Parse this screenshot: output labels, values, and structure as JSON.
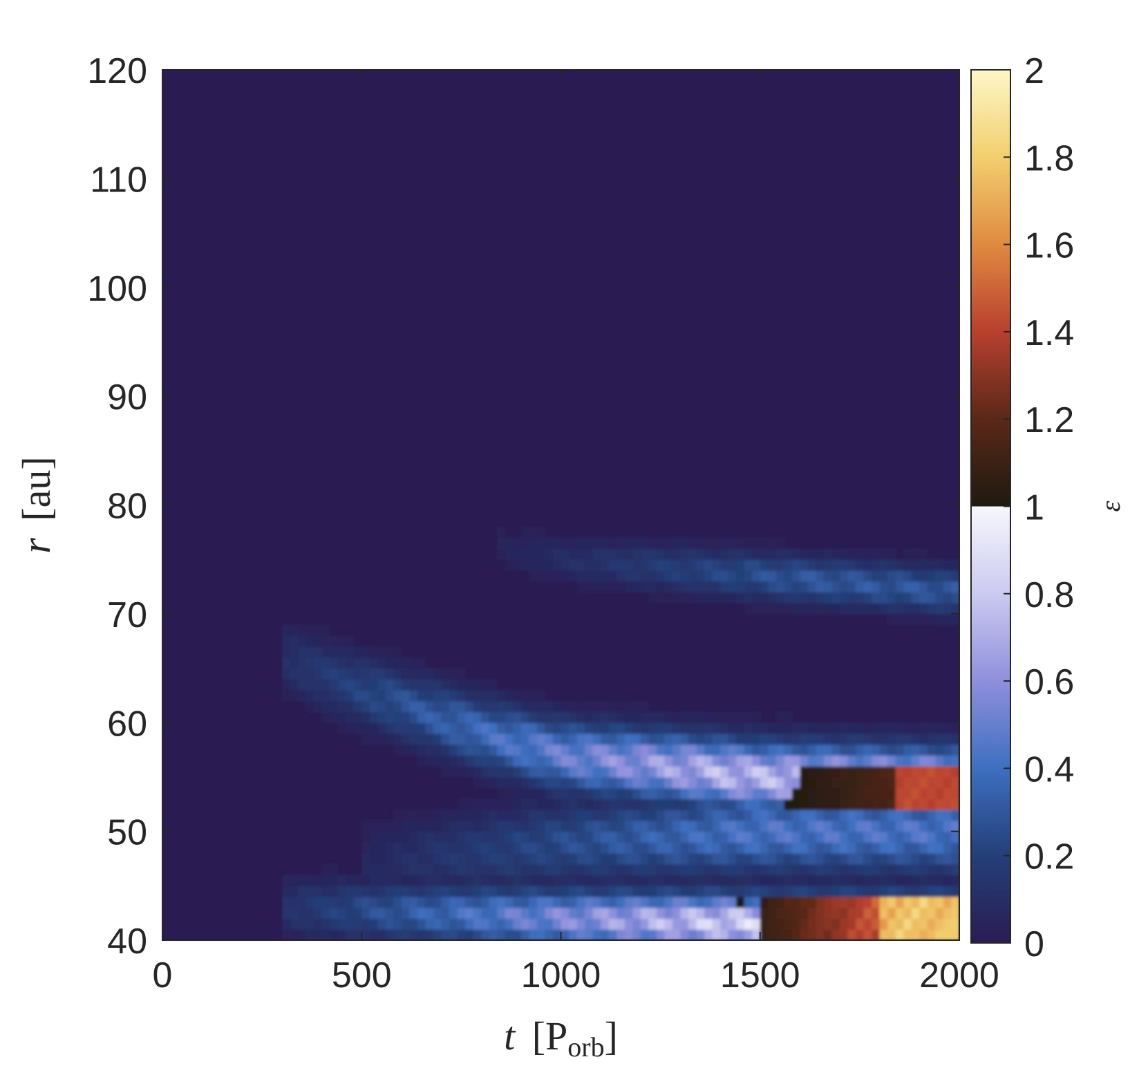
{
  "chart_data": {
    "type": "heatmap",
    "title": "",
    "xlabel": {
      "var": "t",
      "unit": "P",
      "unit_sub": "orb"
    },
    "ylabel": {
      "var": "r",
      "unit": "au"
    },
    "xlim": [
      0,
      2000
    ],
    "ylim": [
      40,
      120
    ],
    "xticks": [
      0,
      500,
      1000,
      1500,
      2000
    ],
    "yticks": [
      40,
      50,
      60,
      70,
      80,
      90,
      100,
      110,
      120
    ],
    "colorbar": {
      "label": "ε",
      "range": [
        0,
        2
      ],
      "ticks": [
        "0",
        "0.2",
        "0.4",
        "0.6",
        "0.8",
        "1",
        "1.2",
        "1.4",
        "1.6",
        "1.8",
        "2"
      ],
      "segments": [
        {
          "range": [
            0,
            1
          ],
          "stops": [
            [
              0,
              "#2a1c52"
            ],
            [
              0.2,
              "#243f78"
            ],
            [
              0.4,
              "#3e6fc0"
            ],
            [
              0.6,
              "#8f8fdc"
            ],
            [
              0.8,
              "#cbcaf0"
            ],
            [
              1,
              "#f7f7fd"
            ]
          ]
        },
        {
          "range": [
            1,
            2
          ],
          "stops": [
            [
              1,
              "#1e1a10"
            ],
            [
              1.2,
              "#5a2818"
            ],
            [
              1.4,
              "#b8402f"
            ],
            [
              1.6,
              "#e08a40"
            ],
            [
              1.8,
              "#f2cf6e"
            ],
            [
              2,
              "#fdf7c8"
            ]
          ]
        }
      ]
    },
    "background_value": 0.02,
    "features": [
      {
        "name": "outer ring",
        "path": [
          [
            850,
            76
          ],
          [
            1000,
            75
          ],
          [
            1500,
            73.5
          ],
          [
            2000,
            72
          ]
        ],
        "width": 2.0,
        "peak": 0.35
      },
      {
        "name": "middle ring",
        "path": [
          [
            300,
            66
          ],
          [
            500,
            63
          ],
          [
            800,
            59
          ],
          [
            1000,
            57
          ],
          [
            1500,
            55
          ],
          [
            2000,
            54.5
          ]
        ],
        "width": 3.0,
        "peak": 0.85
      },
      {
        "name": "inner ring upper",
        "path": [
          [
            500,
            47
          ],
          [
            1000,
            49
          ],
          [
            1500,
            50
          ],
          [
            2000,
            50
          ]
        ],
        "width": 3.5,
        "peak": 0.5
      },
      {
        "name": "inner ring lower",
        "path": [
          [
            300,
            43
          ],
          [
            1000,
            42
          ],
          [
            1500,
            41.5
          ],
          [
            2000,
            41.5
          ]
        ],
        "width": 2.5,
        "peak": 0.95
      }
    ],
    "hot_regions": [
      {
        "t": [
          1550,
          2000
        ],
        "r": [
          52,
          56
        ],
        "value": 1.2
      },
      {
        "t": [
          1450,
          2000
        ],
        "r": [
          40,
          44
        ],
        "value": 1.6
      }
    ]
  }
}
